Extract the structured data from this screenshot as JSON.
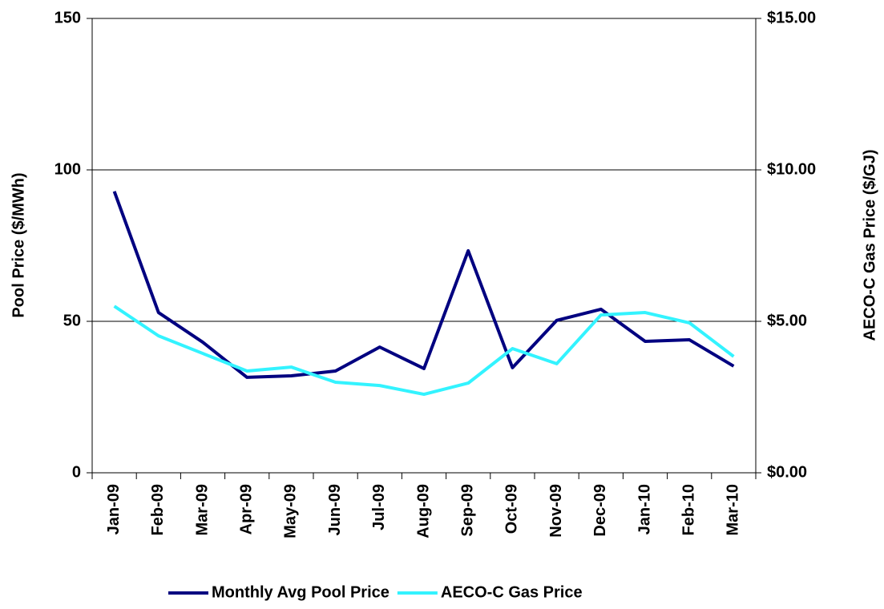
{
  "chart_data": {
    "type": "line",
    "y_label": "Pool Price ($/MWh)",
    "y2_label": "AECO-C Gas Price ($/GJ)",
    "categories": [
      "Jan-09",
      "Feb-09",
      "Mar-09",
      "Apr-09",
      "May-09",
      "Jun-09",
      "Jul-09",
      "Aug-09",
      "Sep-09",
      "Oct-09",
      "Nov-09",
      "Dec-09",
      "Jan-10",
      "Feb-10",
      "Mar-10"
    ],
    "series": [
      {
        "name": "Monthly Avg Pool Price",
        "color": "#000080",
        "values": [
          92.9,
          52.9,
          43.1,
          31.5,
          32.0,
          33.6,
          41.5,
          34.4,
          73.3,
          34.7,
          50.3,
          54.0,
          43.4,
          43.9,
          35.2
        ]
      },
      {
        "name": "AECO-C Gas Price",
        "color": "#33F3FF",
        "axis": "y2",
        "values": [
          5.5,
          4.52,
          3.94,
          3.36,
          3.49,
          2.99,
          2.88,
          2.59,
          2.96,
          4.1,
          3.6,
          5.21,
          5.29,
          4.95,
          3.84
        ]
      }
    ],
    "ylim": [
      0,
      150
    ],
    "yticks": [
      0,
      50,
      100,
      150
    ],
    "y2lim": [
      0,
      15
    ],
    "y2ticks": [
      {
        "value": 0,
        "label": "$0.00"
      },
      {
        "value": 5,
        "label": "$5.00"
      },
      {
        "value": 10,
        "label": "$10.00"
      },
      {
        "value": 15,
        "label": "$15.00"
      }
    ],
    "grid": true,
    "legend": "bottom"
  }
}
